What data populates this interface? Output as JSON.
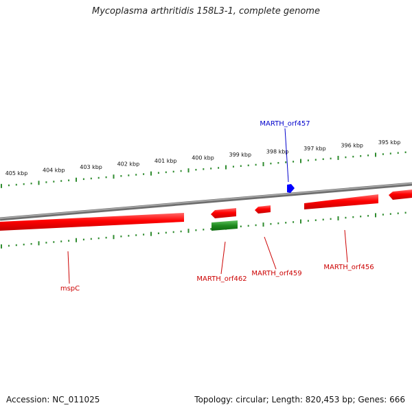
{
  "title": "Mycoplasma arthritidis 158L3-1, complete genome",
  "footer": {
    "accession": "Accession: NC_011025",
    "summary": "Topology: circular; Length: 820,453 bp; Genes: 666"
  },
  "scale_labels": [
    "405 kbp",
    "404 kbp",
    "403 kbp",
    "402 kbp",
    "401 kbp",
    "400 kbp",
    "399 kbp",
    "398 kbp",
    "397 kbp",
    "396 kbp",
    "395 kbp"
  ],
  "genes": [
    {
      "name": "MARTH_orf457",
      "color": "#0000cc"
    },
    {
      "name": "MARTH_orf462",
      "color": "#cc0000"
    },
    {
      "name": "MARTH_orf459",
      "color": "#cc0000"
    },
    {
      "name": "MARTH_orf456",
      "color": "#cc0000"
    },
    {
      "name": "mspC",
      "color": "#cc0000"
    }
  ],
  "colors": {
    "backbone": "#808080",
    "forward_gene": "#ff0000",
    "reverse_gene": "#ff0000",
    "rna_gene": "#2a8a2a",
    "highlight_gene": "#0000ff",
    "ticks": "#2e8b2e"
  }
}
